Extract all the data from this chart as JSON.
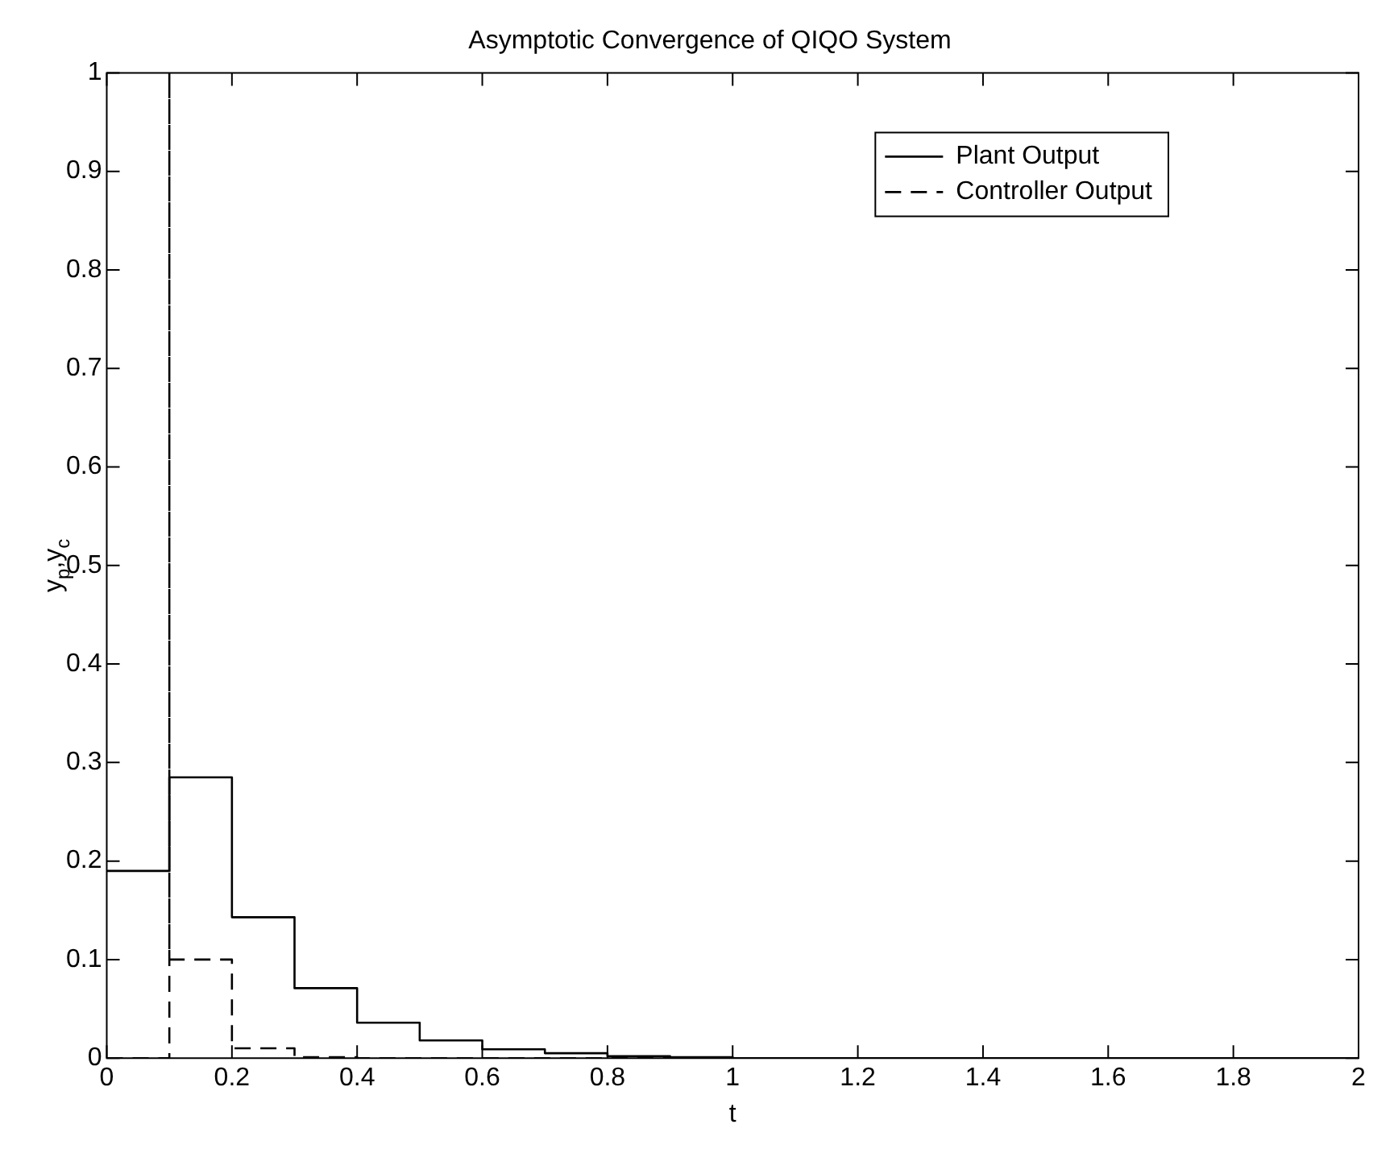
{
  "chart_data": {
    "type": "step",
    "title": "Asymptotic Convergence of QIQO System",
    "xlabel": "t",
    "ylabel": "y$_{p}$,y$_{c}$",
    "xlim": [
      0,
      2
    ],
    "xticks": [
      0,
      0.2,
      0.4,
      0.6,
      0.8,
      1,
      1.2,
      1.4,
      1.6,
      1.8,
      2
    ],
    "ylim": [
      0,
      1
    ],
    "yticks": [
      0,
      0.1,
      0.2,
      0.3,
      0.4,
      0.5,
      0.6,
      0.7,
      0.8,
      0.9,
      1
    ],
    "grid": false,
    "legend": "top right",
    "marker": "none",
    "series": [
      {
        "name": "Plant Output",
        "color": "#000000",
        "line_style": "solid",
        "x": [
          0,
          0.1,
          0.2,
          0.3,
          0.4,
          0.5,
          0.6,
          0.7,
          0.8,
          0.9,
          1,
          2
        ],
        "values": [
          0.19,
          0.285,
          0.143,
          0.071,
          0.036,
          0.018,
          0.009,
          0.005,
          0.002,
          0.001,
          0,
          0
        ]
      },
      {
        "name": "Controller Output",
        "color": "#000000",
        "line_style": "dashed",
        "x": [
          0,
          0.1,
          0.1,
          0.2,
          0.3,
          0.4,
          2
        ],
        "values": [
          0,
          1,
          0.1,
          0.01,
          0.001,
          0,
          0
        ]
      }
    ]
  }
}
